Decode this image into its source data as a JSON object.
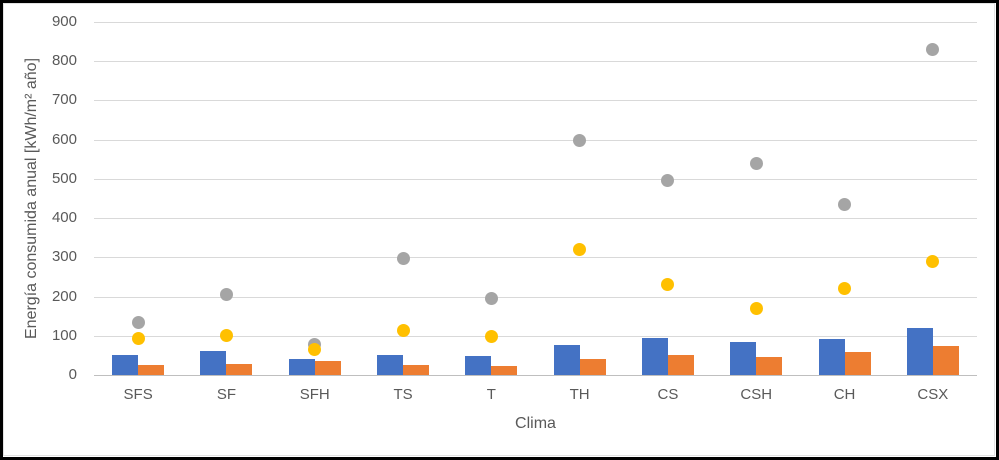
{
  "chart_data": {
    "type": "bar+scatter",
    "title": "",
    "xlabel": "Clima",
    "ylabel": "Energía consumida anual [kWh/m² año]",
    "categories": [
      "SFS",
      "SF",
      "SFH",
      "TS",
      "T",
      "TH",
      "CS",
      "CSH",
      "CH",
      "CSX"
    ],
    "series": [
      {
        "name": "blue-bar-series",
        "type": "bar",
        "color": "#4472C4",
        "values": [
          51,
          60,
          40,
          52,
          48,
          77,
          95,
          85,
          93,
          120
        ]
      },
      {
        "name": "orange-bar-series",
        "type": "bar",
        "color": "#ED7D31",
        "values": [
          25,
          28,
          35,
          25,
          24,
          40,
          52,
          47,
          58,
          74
        ]
      },
      {
        "name": "gray-dot-series",
        "type": "scatter",
        "color": "#A5A5A5",
        "values": [
          134,
          204,
          78,
          297,
          196,
          597,
          495,
          540,
          434,
          831
        ]
      },
      {
        "name": "yellow-dot-series",
        "type": "scatter",
        "color": "#FFC000",
        "values": [
          93,
          100,
          65,
          113,
          97,
          320,
          231,
          170,
          220,
          289
        ]
      }
    ],
    "y_ticks": [
      0,
      100,
      200,
      300,
      400,
      500,
      600,
      700,
      800,
      900
    ],
    "ylim": [
      0,
      900
    ],
    "grid": true,
    "legend": false,
    "colors": {
      "gridline": "#D9D9D9",
      "axis_line": "#BFBFBF",
      "text": "#595959",
      "background": "#FFFFFF",
      "border": "#000000"
    }
  }
}
